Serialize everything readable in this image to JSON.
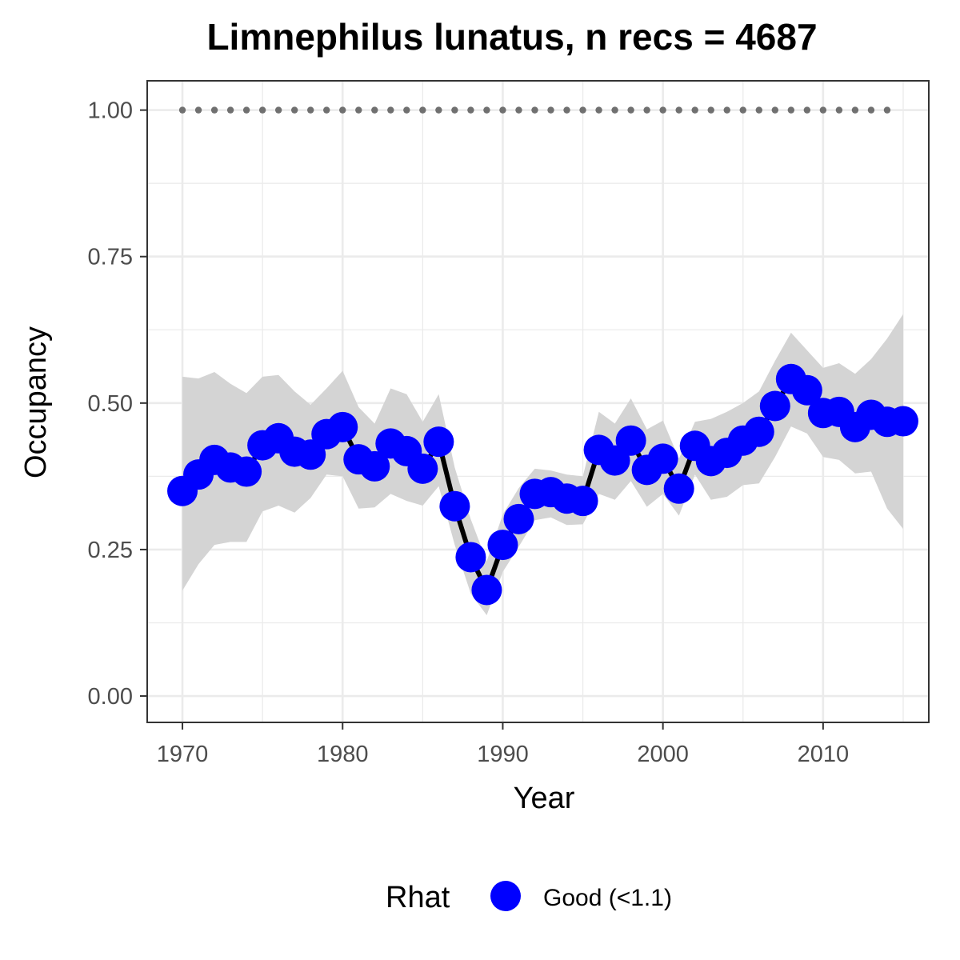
{
  "chart_data": {
    "type": "line",
    "title": "Limnephilus lunatus, n recs = 4687",
    "xlabel": "Year",
    "ylabel": "Occupancy",
    "xlim": [
      1967.8,
      2016.6
    ],
    "ylim": [
      -0.045,
      1.05
    ],
    "x_ticks": [
      1970,
      1980,
      1990,
      2000,
      2010
    ],
    "x_tick_labels": [
      "1970",
      "1980",
      "1990",
      "2000",
      "2010"
    ],
    "y_ticks": [
      0,
      0.25,
      0.5,
      0.75,
      1
    ],
    "y_tick_labels": [
      "0.00",
      "0.25",
      "0.50",
      "0.75",
      "1.00"
    ],
    "grid": true,
    "legend": {
      "placement": "bottom",
      "title": "Rhat",
      "entries": [
        {
          "label": "Good (<1.1)",
          "color": "#0000ff"
        }
      ]
    },
    "colors": {
      "points": "#0000ff",
      "line": "#000000",
      "ribbon": "#d4d4d4",
      "reference_points": "#707070",
      "grid": "#ebebeb",
      "panel_border": "#333333"
    },
    "x": [
      1970,
      1971,
      1972,
      1973,
      1974,
      1975,
      1976,
      1977,
      1978,
      1979,
      1980,
      1981,
      1982,
      1983,
      1984,
      1985,
      1986,
      1987,
      1988,
      1989,
      1990,
      1991,
      1992,
      1993,
      1994,
      1995,
      1996,
      1997,
      1998,
      1999,
      2000,
      2001,
      2002,
      2003,
      2004,
      2005,
      2006,
      2007,
      2008,
      2009,
      2010,
      2011,
      2012,
      2013,
      2014,
      2015
    ],
    "series": [
      {
        "values": [
          0.35,
          0.378,
          0.403,
          0.39,
          0.383,
          0.428,
          0.44,
          0.417,
          0.412,
          0.447,
          0.459,
          0.404,
          0.392,
          0.431,
          0.418,
          0.388,
          0.434,
          0.324,
          0.237,
          0.181,
          0.258,
          0.302,
          0.345,
          0.348,
          0.337,
          0.333,
          0.42,
          0.402,
          0.436,
          0.386,
          0.405,
          0.354,
          0.427,
          0.401,
          0.415,
          0.436,
          0.451,
          0.495,
          0.541,
          0.522,
          0.483,
          0.485,
          0.459,
          0.48,
          0.468,
          0.469
        ],
        "lower": [
          0.18,
          0.225,
          0.258,
          0.263,
          0.263,
          0.315,
          0.325,
          0.313,
          0.338,
          0.378,
          0.375,
          0.32,
          0.322,
          0.345,
          0.333,
          0.325,
          0.358,
          0.258,
          0.175,
          0.138,
          0.212,
          0.255,
          0.3,
          0.305,
          0.292,
          0.293,
          0.345,
          0.335,
          0.367,
          0.323,
          0.345,
          0.308,
          0.378,
          0.335,
          0.34,
          0.36,
          0.363,
          0.408,
          0.46,
          0.448,
          0.408,
          0.403,
          0.38,
          0.383,
          0.32,
          0.285
        ],
        "upper": [
          0.545,
          0.542,
          0.553,
          0.533,
          0.517,
          0.545,
          0.548,
          0.52,
          0.497,
          0.525,
          0.555,
          0.493,
          0.465,
          0.525,
          0.515,
          0.468,
          0.515,
          0.39,
          0.302,
          0.23,
          0.31,
          0.355,
          0.388,
          0.385,
          0.378,
          0.375,
          0.485,
          0.465,
          0.508,
          0.455,
          0.47,
          0.405,
          0.468,
          0.473,
          0.485,
          0.5,
          0.52,
          0.572,
          0.62,
          0.59,
          0.56,
          0.568,
          0.55,
          0.575,
          0.61,
          0.652
        ],
        "reference_value": 1.0,
        "reference_x_range": [
          1970,
          2014
        ]
      }
    ]
  }
}
